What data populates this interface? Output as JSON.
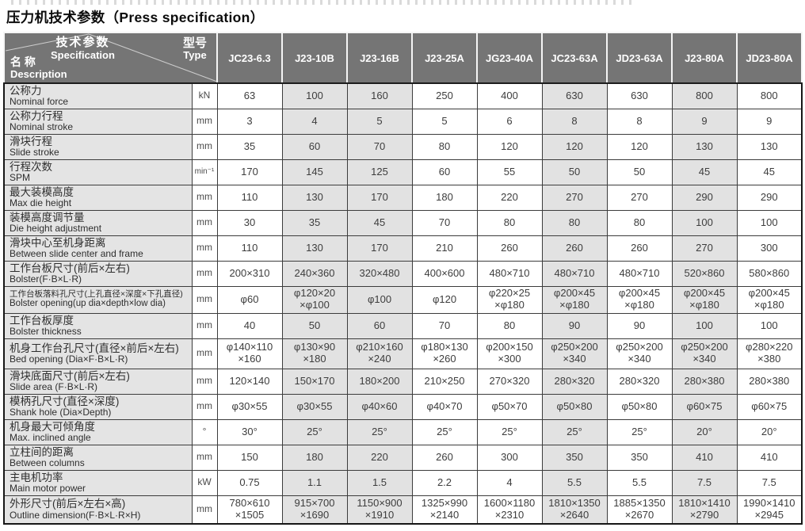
{
  "title": "压力机技术参数（Press specification）",
  "table": {
    "corner": {
      "spec_zh": "技术参数",
      "spec_en": "Specification",
      "type_zh": "型号",
      "type_en": "Type",
      "name_zh": "名 称",
      "name_en": "Description"
    },
    "models": [
      "JC23-6.3",
      "J23-10B",
      "J23-16B",
      "J23-25A",
      "JG23-40A",
      "JC23-63A",
      "JD23-63A",
      "J23-80A",
      "JD23-80A"
    ],
    "shaded_model_indices": [
      1,
      2,
      5,
      7
    ],
    "colors": {
      "header_bg": "#757575",
      "header_text": "#ffffff",
      "label_bg": "#e4e4e4",
      "shaded_cell_bg": "#e2e2e2",
      "cell_bg": "#ffffff",
      "border": "#3c3c3c",
      "text": "#3d3d3d"
    },
    "rows": [
      {
        "zh": "公称力",
        "en": "Nominal force",
        "unit": "kN",
        "values": [
          "63",
          "100",
          "160",
          "250",
          "400",
          "630",
          "630",
          "800",
          "800"
        ]
      },
      {
        "zh": "公称力行程",
        "en": "Nominal stroke",
        "unit": "mm",
        "values": [
          "3",
          "4",
          "5",
          "5",
          "6",
          "8",
          "8",
          "9",
          "9"
        ]
      },
      {
        "zh": "滑块行程",
        "en": "Slide stroke",
        "unit": "mm",
        "values": [
          "35",
          "60",
          "70",
          "80",
          "120",
          "120",
          "120",
          "130",
          "130"
        ]
      },
      {
        "zh": "行程次数",
        "en": "SPM",
        "unit": "min⁻¹",
        "values": [
          "170",
          "145",
          "125",
          "60",
          "55",
          "50",
          "50",
          "45",
          "45"
        ]
      },
      {
        "zh": "最大装模高度",
        "en": "Max die height",
        "unit": "mm",
        "values": [
          "110",
          "130",
          "170",
          "180",
          "220",
          "270",
          "270",
          "290",
          "290"
        ]
      },
      {
        "zh": "装模高度调节量",
        "en": "Die height adjustment",
        "unit": "mm",
        "values": [
          "30",
          "35",
          "45",
          "70",
          "80",
          "80",
          "80",
          "100",
          "100"
        ]
      },
      {
        "zh": "滑块中心至机身距离",
        "en": "Between slide center and frame",
        "unit": "mm",
        "values": [
          "110",
          "130",
          "170",
          "210",
          "260",
          "260",
          "260",
          "270",
          "300"
        ]
      },
      {
        "zh": "工作台板尺寸(前后×左右)",
        "en": "Bolster(F·B×L·R)",
        "unit": "mm",
        "values": [
          "200×310",
          "240×360",
          "320×480",
          "400×600",
          "480×710",
          "480×710",
          "480×710",
          "520×860",
          "580×860"
        ]
      },
      {
        "zh": "工作台板落料孔尺寸(上孔直径×深度×下孔直径)",
        "en": "Bolster opening(up dia×depth×low dia)",
        "unit": "mm",
        "small": true,
        "tall": "h34",
        "values": [
          "φ60",
          "φ120×20\n×φ100",
          "φ100",
          "φ120",
          "φ220×25\n×φ180",
          "φ200×45\n×φ180",
          "φ200×45\n×φ180",
          "φ200×45\n×φ180",
          "φ200×45\n×φ180"
        ]
      },
      {
        "zh": "工作台板厚度",
        "en": "Bolster thickness",
        "unit": "mm",
        "values": [
          "40",
          "50",
          "60",
          "70",
          "80",
          "90",
          "90",
          "100",
          "100"
        ]
      },
      {
        "zh": "机身工作台孔尺寸(直径×前后×左右)",
        "en": "Bed opening (Dia×F·B×L·R)",
        "unit": "mm",
        "tall": "h38",
        "values": [
          "φ140×110\n×160",
          "φ130×90\n×180",
          "φ210×160\n×240",
          "φ180×130\n×260",
          "φ200×150\n×300",
          "φ250×200\n×340",
          "φ250×200\n×340",
          "φ250×200\n×340",
          "φ280×220\n×380"
        ]
      },
      {
        "zh": "滑块底面尺寸(前后×左右)",
        "en": "Slide area (F·B×L·R)",
        "unit": "mm",
        "values": [
          "120×140",
          "150×170",
          "180×200",
          "210×250",
          "270×320",
          "280×320",
          "280×320",
          "280×380",
          "280×380"
        ]
      },
      {
        "zh": "模柄孔尺寸(直径×深度)",
        "en": "Shank hole (Dia×Depth)",
        "unit": "mm",
        "values": [
          "φ30×55",
          "φ30×55",
          "φ40×60",
          "φ40×70",
          "φ50×70",
          "φ50×80",
          "φ50×80",
          "φ60×75",
          "φ60×75"
        ]
      },
      {
        "zh": "机身最大可倾角度",
        "en": "Max. inclined angle",
        "unit": "°",
        "values": [
          "30°",
          "25°",
          "25°",
          "25°",
          "25°",
          "25°",
          "25°",
          "20°",
          "20°"
        ]
      },
      {
        "zh": "立柱间的距离",
        "en": "Between columns",
        "unit": "mm",
        "values": [
          "150",
          "180",
          "220",
          "260",
          "300",
          "350",
          "350",
          "410",
          "410"
        ]
      },
      {
        "zh": "主电机功率",
        "en": "Main motor power",
        "unit": "kW",
        "values": [
          "0.75",
          "1.1",
          "1.5",
          "2.2",
          "4",
          "5.5",
          "5.5",
          "7.5",
          "7.5"
        ]
      },
      {
        "zh": "外形尺寸(前后×左右×高)",
        "en": "Outline dimension(F·B×L·R×H)",
        "unit": "mm",
        "tall": "h36",
        "values": [
          "780×610\n×1505",
          "915×700\n×1690",
          "1150×900\n×1910",
          "1325×990\n×2140",
          "1600×1180\n×2310",
          "1810×1350\n×2640",
          "1885×1350\n×2670",
          "1810×1410\n×2790",
          "1990×1410\n×2945"
        ]
      }
    ]
  }
}
